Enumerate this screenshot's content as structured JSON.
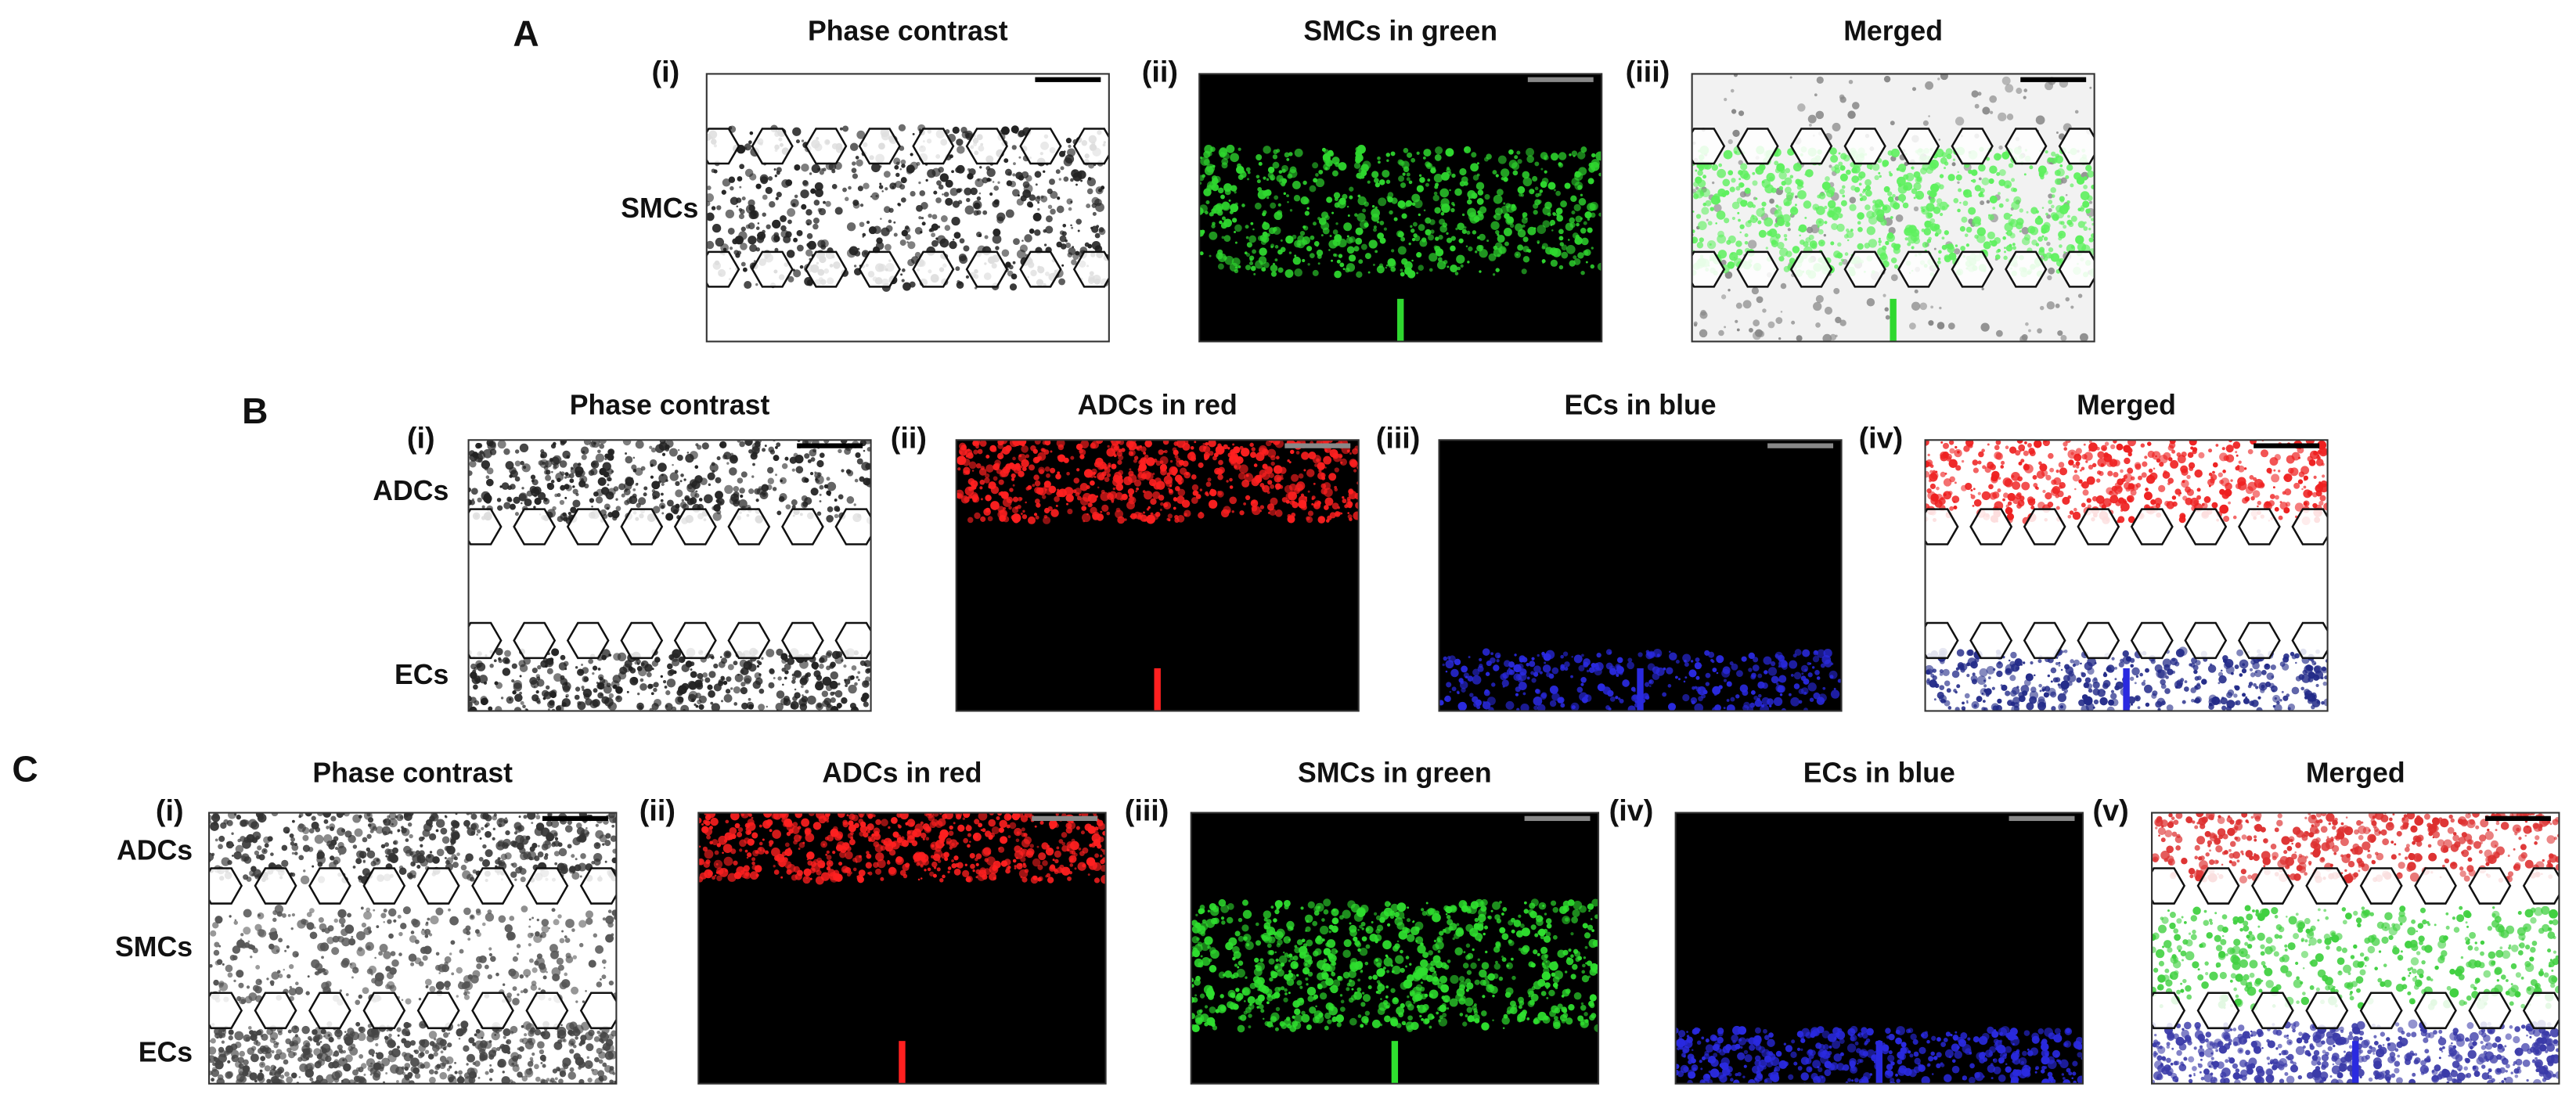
{
  "panels": [
    {
      "letter": "A",
      "row_labels": [
        "SMCs"
      ],
      "images": [
        {
          "numeral": "(i)",
          "title": "Phase contrast"
        },
        {
          "numeral": "(ii)",
          "title": "SMCs in green"
        },
        {
          "numeral": "(iii)",
          "title": "Merged"
        }
      ]
    },
    {
      "letter": "B",
      "row_labels": [
        "ADCs",
        "ECs"
      ],
      "images": [
        {
          "numeral": "(i)",
          "title": "Phase contrast"
        },
        {
          "numeral": "(ii)",
          "title": "ADCs in red"
        },
        {
          "numeral": "(iii)",
          "title": "ECs in blue"
        },
        {
          "numeral": "(iv)",
          "title": "Merged"
        }
      ]
    },
    {
      "letter": "C",
      "row_labels": [
        "ADCs",
        "SMCs",
        "ECs"
      ],
      "images": [
        {
          "numeral": "(i)",
          "title": "Phase contrast"
        },
        {
          "numeral": "(ii)",
          "title": "ADCs in red"
        },
        {
          "numeral": "(iii)",
          "title": "SMCs in green"
        },
        {
          "numeral": "(iv)",
          "title": "ECs in blue"
        },
        {
          "numeral": "(v)",
          "title": "Merged"
        }
      ]
    }
  ]
}
